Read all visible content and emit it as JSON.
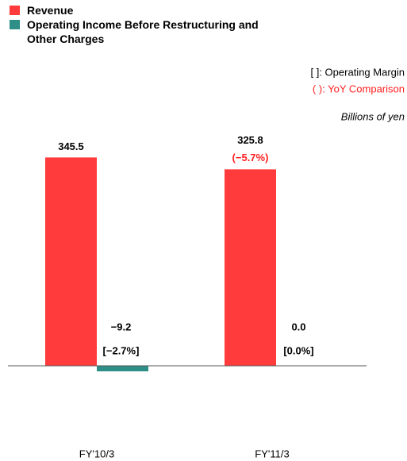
{
  "chart_data": {
    "type": "bar",
    "categories": [
      "FY'10/3",
      "FY'11/3"
    ],
    "series": [
      {
        "name": "Revenue",
        "color": "#ff3b3b",
        "values": [
          345.5,
          325.8
        ],
        "value_labels": [
          "345.5",
          "325.8"
        ],
        "yoy_labels": [
          null,
          "(−5.7%)"
        ]
      },
      {
        "name": "Operating Income Before Restructuring and Other Charges",
        "color": "#2e8f88",
        "values": [
          -9.2,
          0.0
        ],
        "value_labels": [
          "−9.2",
          "0.0"
        ],
        "margin_labels": [
          "[−2.7%]",
          "[0.0%]"
        ]
      }
    ],
    "notes": [
      "[ ]: Operating Margin",
      "( ): YoY Comparison"
    ],
    "unit": "Billions of yen",
    "ylim": [
      -100,
      400
    ],
    "legend": "top-left"
  }
}
